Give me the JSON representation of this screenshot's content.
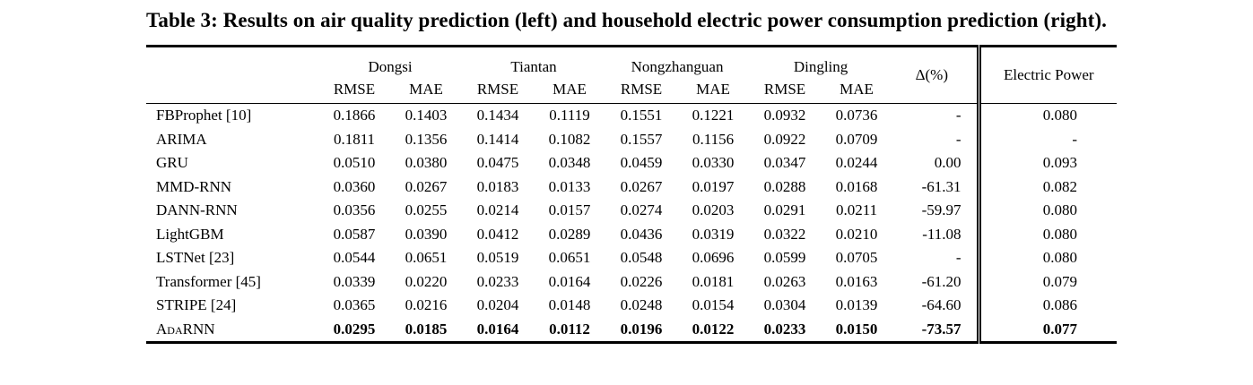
{
  "title": "Table 3: Results on air quality prediction (left) and household electric power consumption prediction (right).",
  "table": {
    "groups": [
      {
        "label": "Dongsi"
      },
      {
        "label": "Tiantan"
      },
      {
        "label": "Nongzhanguan"
      },
      {
        "label": "Dingling"
      }
    ],
    "metric_headers": [
      "RMSE",
      "MAE",
      "RMSE",
      "MAE",
      "RMSE",
      "MAE",
      "RMSE",
      "MAE"
    ],
    "delta_header": "Δ(%)",
    "power_header": "Electric Power",
    "rows": [
      {
        "method": "FBProphet [10]",
        "values": [
          "0.1866",
          "0.1403",
          "0.1434",
          "0.1119",
          "0.1551",
          "0.1221",
          "0.0932",
          "0.0736"
        ],
        "delta": "-",
        "power": "0.080",
        "bold": false,
        "smallcaps": false
      },
      {
        "method": "ARIMA",
        "values": [
          "0.1811",
          "0.1356",
          "0.1414",
          "0.1082",
          "0.1557",
          "0.1156",
          "0.0922",
          "0.0709"
        ],
        "delta": "-",
        "power": "-",
        "bold": false,
        "smallcaps": false
      },
      {
        "method": "GRU",
        "values": [
          "0.0510",
          "0.0380",
          "0.0475",
          "0.0348",
          "0.0459",
          "0.0330",
          "0.0347",
          "0.0244"
        ],
        "delta": "0.00",
        "power": "0.093",
        "bold": false,
        "smallcaps": false
      },
      {
        "method": "MMD-RNN",
        "values": [
          "0.0360",
          "0.0267",
          "0.0183",
          "0.0133",
          "0.0267",
          "0.0197",
          "0.0288",
          "0.0168"
        ],
        "delta": "-61.31",
        "power": "0.082",
        "bold": false,
        "smallcaps": false
      },
      {
        "method": "DANN-RNN",
        "values": [
          "0.0356",
          "0.0255",
          "0.0214",
          "0.0157",
          "0.0274",
          "0.0203",
          "0.0291",
          "0.0211"
        ],
        "delta": "-59.97",
        "power": "0.080",
        "bold": false,
        "smallcaps": false
      },
      {
        "method": "LightGBM",
        "values": [
          "0.0587",
          "0.0390",
          "0.0412",
          "0.0289",
          "0.0436",
          "0.0319",
          "0.0322",
          "0.0210"
        ],
        "delta": "-11.08",
        "power": "0.080",
        "bold": false,
        "smallcaps": false
      },
      {
        "method": "LSTNet [23]",
        "values": [
          "0.0544",
          "0.0651",
          "0.0519",
          "0.0651",
          "0.0548",
          "0.0696",
          "0.0599",
          "0.0705"
        ],
        "delta": "-",
        "power": "0.080",
        "bold": false,
        "smallcaps": false
      },
      {
        "method": "Transformer [45]",
        "values": [
          "0.0339",
          "0.0220",
          "0.0233",
          "0.0164",
          "0.0226",
          "0.0181",
          "0.0263",
          "0.0163"
        ],
        "delta": "-61.20",
        "power": "0.079",
        "bold": false,
        "smallcaps": false
      },
      {
        "method": "STRIPE [24]",
        "values": [
          "0.0365",
          "0.0216",
          "0.0204",
          "0.0148",
          "0.0248",
          "0.0154",
          "0.0304",
          "0.0139"
        ],
        "delta": "-64.60",
        "power": "0.086",
        "bold": false,
        "smallcaps": false
      },
      {
        "method": "AdaRNN",
        "values": [
          "0.0295",
          "0.0185",
          "0.0164",
          "0.0112",
          "0.0196",
          "0.0122",
          "0.0233",
          "0.0150"
        ],
        "delta": "-73.57",
        "power": "0.077",
        "bold": true,
        "smallcaps": true
      }
    ],
    "colors": {
      "text": "#000000",
      "background": "#ffffff"
    }
  }
}
